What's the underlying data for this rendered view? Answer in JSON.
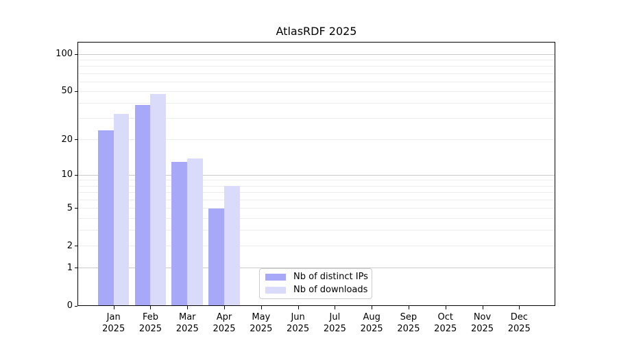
{
  "chart_data": {
    "type": "bar",
    "title": "AtlasRDF 2025",
    "x_categories": [
      "Jan",
      "Feb",
      "Mar",
      "Apr",
      "May",
      "Jun",
      "Jul",
      "Aug",
      "Sep",
      "Oct",
      "Nov",
      "Dec"
    ],
    "x_year": "2025",
    "series": [
      {
        "name": "Nb of distinct IPs",
        "color": "#a8a8f9",
        "values": [
          24,
          39,
          13,
          5,
          0,
          0,
          0,
          0,
          0,
          0,
          0,
          0
        ]
      },
      {
        "name": "Nb of downloads",
        "color": "#dadafb",
        "values": [
          33,
          48,
          14,
          8,
          0,
          0,
          0,
          0,
          0,
          0,
          0,
          0
        ]
      }
    ],
    "y_axis": {
      "scale": "log10(1+y)",
      "tick_values": [
        0,
        1,
        2,
        5,
        10,
        20,
        50,
        100
      ],
      "tick_labels": [
        "0",
        "1",
        "2",
        "5",
        "10",
        "20",
        "50",
        "100"
      ],
      "major_grid_values": [
        1,
        10,
        100
      ],
      "minor_grid_values": [
        2,
        3,
        4,
        5,
        6,
        7,
        8,
        9,
        20,
        30,
        40,
        50,
        60,
        70,
        80,
        90
      ],
      "ylim": [
        0,
        126
      ]
    },
    "legend_position": "lower center",
    "grid": "horizontal",
    "colors": {
      "background": "#ffffff",
      "axis": "#000000",
      "text": "#000000",
      "grid_minor": "#ececec",
      "grid_major": "#c9c9c9",
      "legend_border": "#cbcbcb"
    }
  }
}
